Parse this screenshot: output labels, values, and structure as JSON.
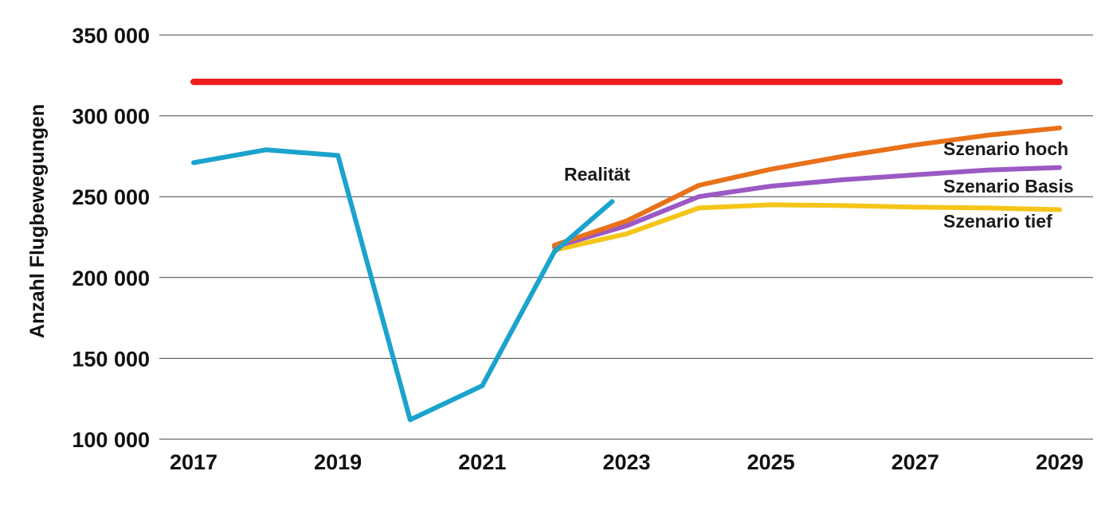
{
  "chart_data": {
    "type": "line",
    "ylabel": "Anzahl Flugbewegungen",
    "xlabel": "",
    "ylim": [
      100000,
      350000
    ],
    "xlim": [
      2017,
      2029
    ],
    "grid": true,
    "yticks": [
      100000,
      150000,
      200000,
      250000,
      300000,
      350000
    ],
    "ytick_labels": [
      "100 000",
      "150 000",
      "200 000",
      "250 000",
      "300 000",
      "350 000"
    ],
    "xticks": [
      2017,
      2019,
      2021,
      2023,
      2025,
      2027,
      2029
    ],
    "xtick_labels": [
      "2017",
      "2019",
      "2021",
      "2023",
      "2025",
      "2027",
      "2029"
    ],
    "series": [
      {
        "key": "cap",
        "color": "#ee1c1c",
        "width": 8,
        "x": [
          2017,
          2029
        ],
        "y": [
          321000,
          321000
        ]
      },
      {
        "key": "tief",
        "name": "Szenario tief",
        "color": "#f5c518",
        "width": 6,
        "x": [
          2022,
          2023,
          2024,
          2025,
          2026,
          2027,
          2028,
          2029
        ],
        "y": [
          217000,
          227000,
          243000,
          245000,
          244500,
          243500,
          243000,
          242000
        ]
      },
      {
        "key": "basis",
        "name": "Szenario Basis",
        "color": "#9b59c4",
        "width": 6,
        "x": [
          2022,
          2023,
          2024,
          2025,
          2026,
          2027,
          2028,
          2029
        ],
        "y": [
          219000,
          232000,
          250000,
          256500,
          260500,
          263500,
          266500,
          268000
        ]
      },
      {
        "key": "hoch",
        "name": "Szenario hoch",
        "color": "#e8711a",
        "width": 6,
        "x": [
          2022,
          2023,
          2024,
          2025,
          2026,
          2027,
          2028,
          2029
        ],
        "y": [
          220000,
          235000,
          257000,
          267000,
          275000,
          282000,
          288000,
          292500
        ]
      },
      {
        "key": "realitaet",
        "name": "Realität",
        "color": "#1aa3cc",
        "width": 6,
        "x": [
          2017,
          2018,
          2019,
          2020,
          2021,
          2022,
          2022.8
        ],
        "y": [
          271000,
          279000,
          275500,
          112000,
          133000,
          216000,
          247000
        ]
      }
    ],
    "annotations": [
      {
        "text": "Realität",
        "series": "realitaet"
      },
      {
        "text": "Szenario hoch",
        "series": "hoch"
      },
      {
        "text": "Szenario Basis",
        "series": "basis"
      },
      {
        "text": "Szenario tief",
        "series": "tief"
      }
    ]
  }
}
